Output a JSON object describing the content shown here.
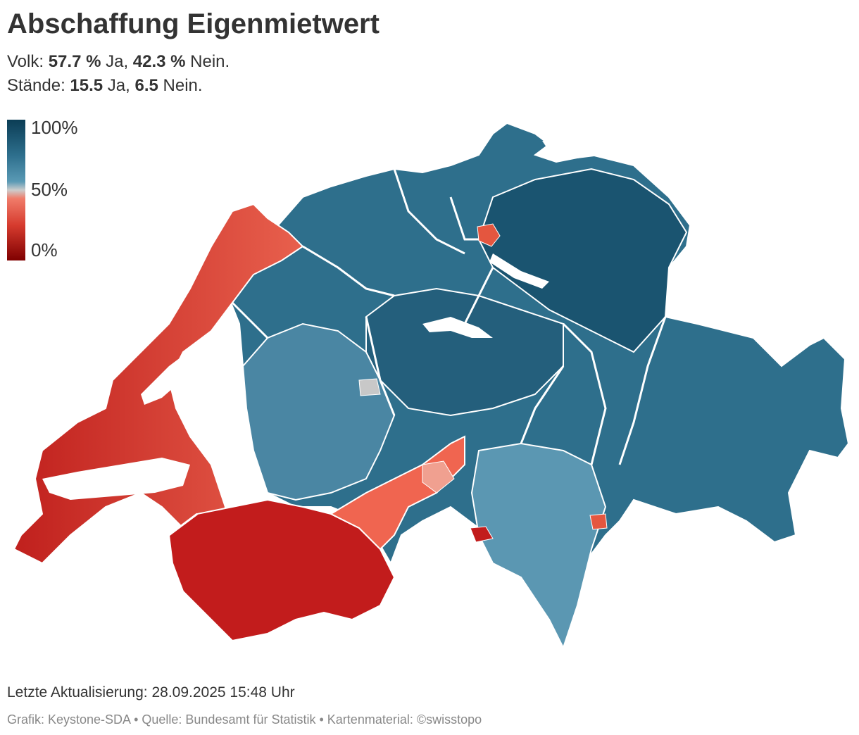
{
  "title": "Abschaffung Eigenmietwert",
  "volk": {
    "prefix": "Volk: ",
    "ja_pct": "57.7 %",
    "ja_word": " Ja, ",
    "nein_pct": "42.3 %",
    "nein_word": " Nein."
  },
  "staende": {
    "prefix": "Stände: ",
    "ja": "15.5",
    "ja_word": " Ja, ",
    "nein": "6.5",
    "nein_word": " Nein."
  },
  "legend": {
    "max": "100%",
    "mid": "50%",
    "min": "0%"
  },
  "colors": {
    "high": "#0b3d55",
    "mid_high": "#3a7a98",
    "neutral": "#cccccc",
    "mid_low": "#e8513f",
    "low": "#9b0f0f"
  },
  "updated": "Letzte Aktualisierung: 28.09.2025 15:48 Uhr",
  "source": "Grafik: Keystone-SDA • Quelle: Bundesamt für Statistik • Kartenmaterial: ©swisstopo"
}
